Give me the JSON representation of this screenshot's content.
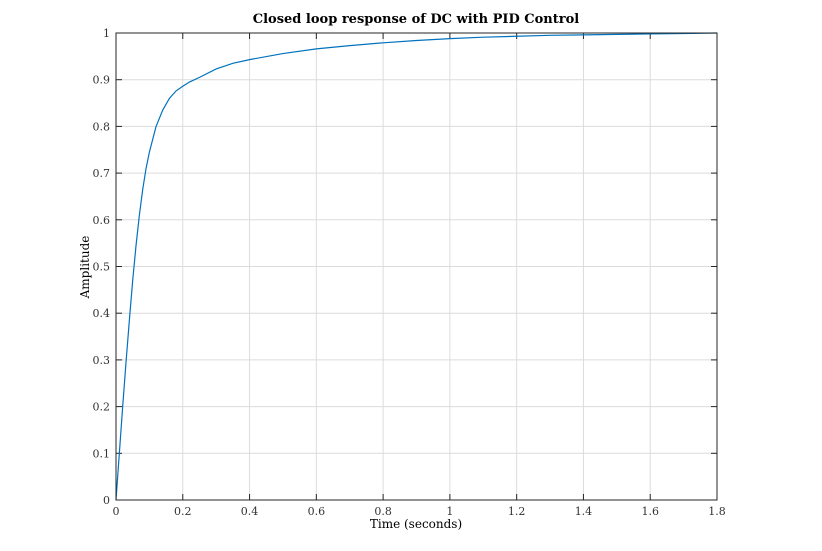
{
  "chart_data": {
    "type": "line",
    "title": "Closed loop response of DC with PID Control",
    "xlabel": "Time (seconds)",
    "ylabel": "Amplitude",
    "xlim": [
      0,
      1.8
    ],
    "ylim": [
      0,
      1
    ],
    "xticks": [
      0,
      0.2,
      0.4,
      0.6,
      0.8,
      1,
      1.2,
      1.4,
      1.6,
      1.8
    ],
    "xtick_labels": [
      "0",
      "0.2",
      "0.4",
      "0.6",
      "0.8",
      "1",
      "1.2",
      "1.4",
      "1.6",
      "1.8"
    ],
    "yticks": [
      0,
      0.1,
      0.2,
      0.3,
      0.4,
      0.5,
      0.6,
      0.7,
      0.8,
      0.9,
      1
    ],
    "ytick_labels": [
      "0",
      "0.1",
      "0.2",
      "0.3",
      "0.4",
      "0.5",
      "0.6",
      "0.7",
      "0.8",
      "0.9",
      "1"
    ],
    "grid": true,
    "series": [
      {
        "color": "#0072bd",
        "x": [
          0,
          0.01,
          0.02,
          0.03,
          0.04,
          0.05,
          0.06,
          0.07,
          0.08,
          0.09,
          0.1,
          0.12,
          0.14,
          0.16,
          0.18,
          0.2,
          0.22,
          0.25,
          0.3,
          0.35,
          0.4,
          0.5,
          0.6,
          0.7,
          0.8,
          0.9,
          1.0,
          1.1,
          1.2,
          1.3,
          1.4,
          1.5,
          1.6,
          1.7,
          1.8
        ],
        "y": [
          0,
          0.1,
          0.2,
          0.295,
          0.385,
          0.47,
          0.545,
          0.61,
          0.665,
          0.71,
          0.745,
          0.8,
          0.835,
          0.86,
          0.876,
          0.886,
          0.895,
          0.905,
          0.923,
          0.935,
          0.943,
          0.956,
          0.966,
          0.973,
          0.979,
          0.984,
          0.988,
          0.991,
          0.993,
          0.995,
          0.996,
          0.997,
          0.998,
          0.999,
          1.0
        ]
      }
    ]
  }
}
